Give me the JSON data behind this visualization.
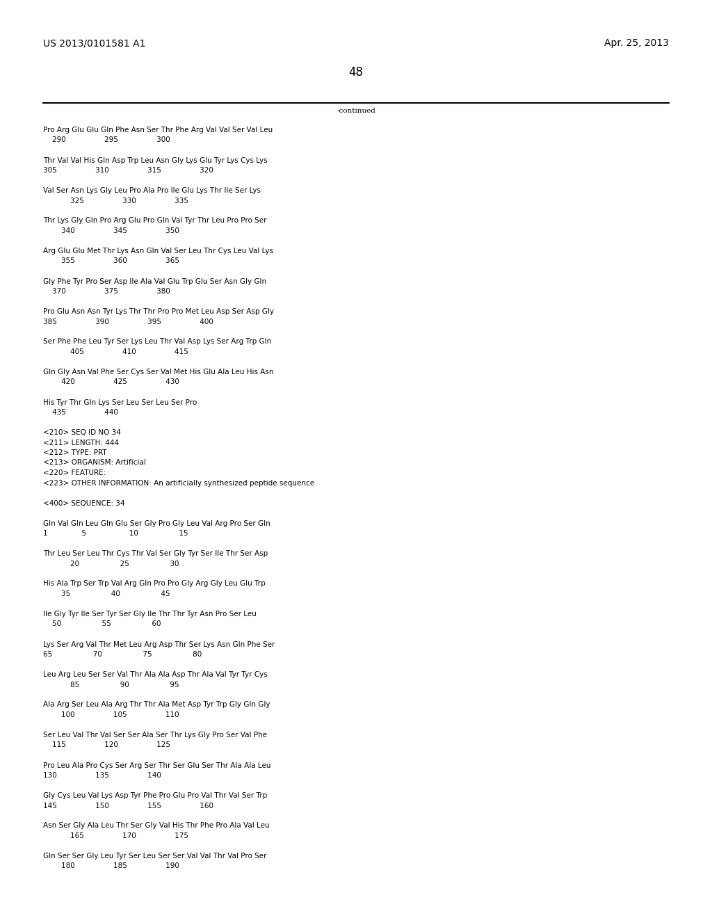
{
  "header_left": "US 2013/0101581 A1",
  "header_right": "Apr. 25, 2013",
  "page_number": "48",
  "continued_text": "-continued",
  "background_color": "#ffffff",
  "text_color": "#000000",
  "font_size": 7.5,
  "header_font_size": 10,
  "page_num_font_size": 12,
  "content_lines": [
    "Pro Arg Glu Glu Gln Phe Asn Ser Thr Phe Arg Val Val Ser Val Leu",
    "    290                 295                 300",
    "",
    "Thr Val Val His Gln Asp Trp Leu Asn Gly Lys Glu Tyr Lys Cys Lys",
    "305                 310                 315                 320",
    "",
    "Val Ser Asn Lys Gly Leu Pro Ala Pro Ile Glu Lys Thr Ile Ser Lys",
    "            325                 330                 335",
    "",
    "Thr Lys Gly Gln Pro Arg Glu Pro Gln Val Tyr Thr Leu Pro Pro Ser",
    "        340                 345                 350",
    "",
    "Arg Glu Glu Met Thr Lys Asn Gln Val Ser Leu Thr Cys Leu Val Lys",
    "        355                 360                 365",
    "",
    "Gly Phe Tyr Pro Ser Asp Ile Ala Val Glu Trp Glu Ser Asn Gly Gln",
    "    370                 375                 380",
    "",
    "Pro Glu Asn Asn Tyr Lys Thr Thr Pro Pro Met Leu Asp Ser Asp Gly",
    "385                 390                 395                 400",
    "",
    "Ser Phe Phe Leu Tyr Ser Lys Leu Thr Val Asp Lys Ser Arg Trp Gln",
    "            405                 410                 415",
    "",
    "Gln Gly Asn Val Phe Ser Cys Ser Val Met His Glu Ala Leu His Asn",
    "        420                 425                 430",
    "",
    "His Tyr Thr Gln Lys Ser Leu Ser Leu Ser Pro",
    "    435                 440",
    "",
    "<210> SEQ ID NO 34",
    "<211> LENGTH: 444",
    "<212> TYPE: PRT",
    "<213> ORGANISM: Artificial",
    "<220> FEATURE:",
    "<223> OTHER INFORMATION: An artificially synthesized peptide sequence",
    "",
    "<400> SEQUENCE: 34",
    "",
    "Gln Val Gln Leu Gln Glu Ser Gly Pro Gly Leu Val Arg Pro Ser Gln",
    "1               5                   10                  15",
    "",
    "Thr Leu Ser Leu Thr Cys Thr Val Ser Gly Tyr Ser Ile Thr Ser Asp",
    "            20                  25                  30",
    "",
    "His Ala Trp Ser Trp Val Arg Gln Pro Pro Gly Arg Gly Leu Glu Trp",
    "        35                  40                  45",
    "",
    "Ile Gly Tyr Ile Ser Tyr Ser Gly Ile Thr Thr Tyr Asn Pro Ser Leu",
    "    50                  55                  60",
    "",
    "Lys Ser Arg Val Thr Met Leu Arg Asp Thr Ser Lys Asn Gln Phe Ser",
    "65                  70                  75                  80",
    "",
    "Leu Arg Leu Ser Ser Val Thr Ala Ala Asp Thr Ala Val Tyr Tyr Cys",
    "            85                  90                  95",
    "",
    "Ala Arg Ser Leu Ala Arg Thr Thr Ala Met Asp Tyr Trp Gly Gln Gly",
    "        100                 105                 110",
    "",
    "Ser Leu Val Thr Val Ser Ser Ala Ser Thr Lys Gly Pro Ser Val Phe",
    "    115                 120                 125",
    "",
    "Pro Leu Ala Pro Cys Ser Arg Ser Thr Ser Glu Ser Thr Ala Ala Leu",
    "130                 135                 140",
    "",
    "Gly Cys Leu Val Lys Asp Tyr Phe Pro Glu Pro Val Thr Val Ser Trp",
    "145                 150                 155                 160",
    "",
    "Asn Ser Gly Ala Leu Thr Ser Gly Val His Thr Phe Pro Ala Val Leu",
    "            165                 170                 175",
    "",
    "Gln Ser Ser Gly Leu Tyr Ser Leu Ser Ser Val Val Thr Val Pro Ser",
    "        180                 185                 190"
  ]
}
